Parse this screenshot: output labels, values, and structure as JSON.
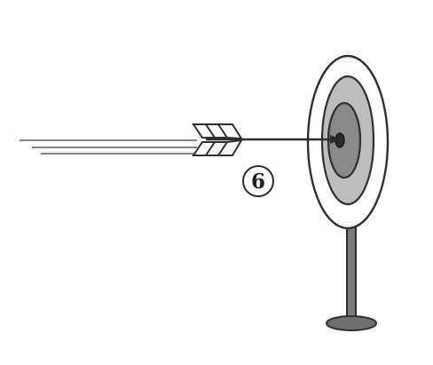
{
  "figure": {
    "label": "6"
  },
  "icons": {
    "arrow": "arrow-icon",
    "target": "target-icon"
  },
  "colors": {
    "ink": "#2f2f2f",
    "ring_outer": "#ffffff",
    "ring_middle": "#bdbdbd",
    "ring_inner": "#8a8a8a",
    "bullseye": "#2a2a2a",
    "stand": "#7a7a7a",
    "base": "#6f6f6f"
  }
}
